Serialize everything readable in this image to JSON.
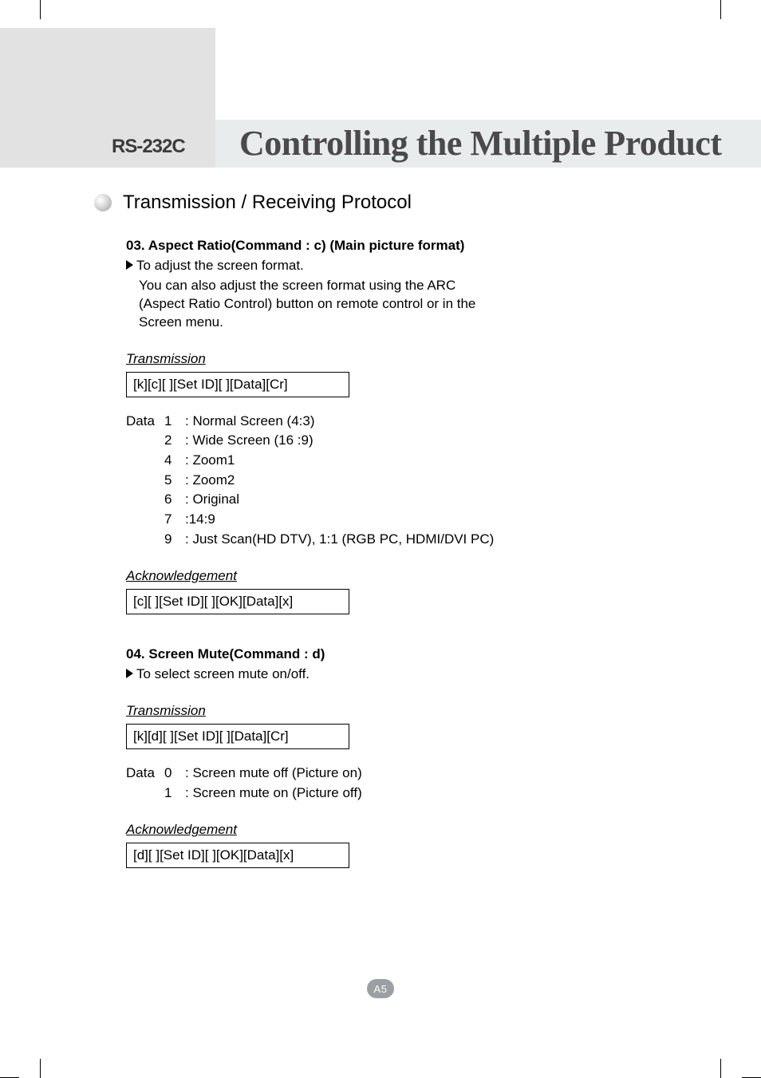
{
  "header": {
    "badge": "RS-232C",
    "title": "Controlling the Multiple Product"
  },
  "section_title": "Transmission / Receiving Protocol",
  "cmd03": {
    "heading": "03. Aspect Ratio(Command : c) (Main picture format)",
    "desc_first": "To adjust the screen format.",
    "desc_lines": [
      "You can also adjust the screen format using the ARC",
      "(Aspect Ratio Control) button on remote control or in the",
      "Screen menu."
    ],
    "transmission_label": "Transmission",
    "transmission_code": "[k][c][ ][Set ID][ ][Data][Cr]",
    "data_prefix": "Data",
    "data_items": [
      {
        "n": "1",
        "t": ": Normal Screen (4:3)"
      },
      {
        "n": "2",
        "t": ": Wide Screen (16 :9)"
      },
      {
        "n": "4",
        "t": ": Zoom1"
      },
      {
        "n": "5",
        "t": ": Zoom2"
      },
      {
        "n": "6",
        "t": ": Original"
      },
      {
        "n": "7",
        "t": ":14:9"
      },
      {
        "n": "9",
        "t": ": Just Scan(HD DTV), 1:1 (RGB PC, HDMI/DVI PC)"
      }
    ],
    "ack_label": "Acknowledgement",
    "ack_code": "[c][ ][Set ID][ ][OK][Data][x]"
  },
  "cmd04": {
    "heading": "04. Screen Mute(Command : d)",
    "desc_first": "To select screen mute on/off.",
    "transmission_label": "Transmission",
    "transmission_code": "[k][d][ ][Set ID][ ][Data][Cr]",
    "data_prefix": "Data",
    "data_items": [
      {
        "n": "0",
        "t": ": Screen mute off (Picture on)"
      },
      {
        "n": "1",
        "t": ": Screen mute on (Picture off)"
      }
    ],
    "ack_label": "Acknowledgement",
    "ack_code": "[d][ ][Set ID][ ][OK][Data][x]"
  },
  "page_number": "A5",
  "colors": {
    "grey_block": "#e2e2e2",
    "title_bar": "#e9eced",
    "page_badge": "#9ba0a4",
    "title_text": "#4a4a4a"
  }
}
